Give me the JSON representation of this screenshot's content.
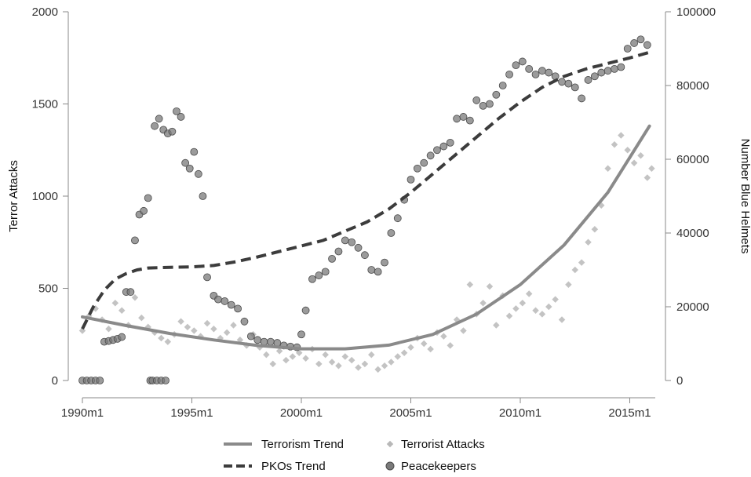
{
  "chart_data": {
    "type": "scatter",
    "title": "",
    "xlabel": "",
    "ylabel": "Terror Attacks",
    "y2label": "Number Blue Helmets",
    "x_range": [
      1990.0,
      2016.2
    ],
    "ylim": [
      0,
      2000
    ],
    "y2lim": [
      0,
      100000
    ],
    "x_ticks": [
      {
        "value": 1990,
        "label": "1990m1"
      },
      {
        "value": 1995,
        "label": "1995m1"
      },
      {
        "value": 2000,
        "label": "2000m1"
      },
      {
        "value": 2005,
        "label": "2005m1"
      },
      {
        "value": 2010,
        "label": "2010m1"
      },
      {
        "value": 2015,
        "label": "2015m1"
      }
    ],
    "y_ticks": [
      0,
      500,
      1000,
      1500,
      2000
    ],
    "y2_ticks": [
      0,
      20000,
      40000,
      60000,
      80000,
      100000
    ],
    "grid": false,
    "legend_position": "bottom",
    "legend": [
      {
        "key": "terror_trend",
        "label": "Terrorism Trend"
      },
      {
        "key": "attacks",
        "label": "Terrorist Attacks"
      },
      {
        "key": "pko_trend",
        "label": "PKOs Trend"
      },
      {
        "key": "peacekeepers",
        "label": "Peacekeepers"
      }
    ],
    "colors": {
      "terror_trend": "#8a8a8a",
      "pko_trend": "#3c3c3c",
      "attacks": "#b8b8b8",
      "peacekeepers": "#7a7a7a"
    },
    "series": [
      {
        "key": "terror_trend",
        "axis": "left",
        "kind": "line",
        "x": [
          1990.0,
          1992.0,
          1994.0,
          1996.0,
          1998.0,
          2000.0,
          2002.0,
          2004.0,
          2006.0,
          2008.0,
          2010.0,
          2012.0,
          2014.0,
          2015.9
        ],
        "y": [
          345,
          298,
          255,
          220,
          190,
          172,
          172,
          192,
          250,
          360,
          520,
          735,
          1020,
          1380
        ]
      },
      {
        "key": "pko_trend",
        "axis": "right",
        "kind": "line",
        "x": [
          1990.0,
          1990.5,
          1991.0,
          1991.5,
          1992.0,
          1992.5,
          1993.0,
          1994.0,
          1995.0,
          1996.0,
          1997.0,
          1998.0,
          1999.0,
          2000.0,
          2001.0,
          2002.0,
          2003.0,
          2004.0,
          2005.0,
          2006.0,
          2007.0,
          2008.0,
          2009.0,
          2010.0,
          2011.0,
          2012.0,
          2013.0,
          2014.0,
          2015.0,
          2015.9
        ],
        "y": [
          14000,
          20000,
          24500,
          27500,
          29000,
          30000,
          30500,
          30700,
          30800,
          31200,
          32200,
          33500,
          35000,
          36500,
          38000,
          40500,
          43000,
          46500,
          51000,
          56000,
          61000,
          66000,
          71000,
          75500,
          79500,
          82500,
          84500,
          86000,
          87500,
          89000
        ]
      },
      {
        "key": "peacekeepers",
        "axis": "right",
        "kind": "points",
        "x": [
          1990.0,
          1990.2,
          1990.4,
          1990.6,
          1990.8,
          1991.0,
          1991.2,
          1991.4,
          1991.6,
          1991.8,
          1992.0,
          1992.2,
          1992.4,
          1992.6,
          1992.8,
          1993.0,
          1993.1,
          1993.2,
          1993.4,
          1993.6,
          1993.8,
          1993.3,
          1993.5,
          1993.7,
          1993.9,
          1994.1,
          1994.3,
          1994.5,
          1994.7,
          1994.9,
          1995.1,
          1995.3,
          1995.5,
          1995.7,
          1996.0,
          1996.2,
          1996.5,
          1996.8,
          1997.1,
          1997.4,
          1997.7,
          1998.0,
          1998.3,
          1998.6,
          1998.9,
          1999.2,
          1999.5,
          1999.8,
          2000.0,
          2000.2,
          2000.5,
          2000.8,
          2001.1,
          2001.4,
          2001.7,
          2002.0,
          2002.3,
          2002.6,
          2002.9,
          2003.2,
          2003.5,
          2003.8,
          2004.1,
          2004.4,
          2004.7,
          2005.0,
          2005.3,
          2005.6,
          2005.9,
          2006.2,
          2006.5,
          2006.8,
          2007.1,
          2007.4,
          2007.7,
          2008.0,
          2008.3,
          2008.6,
          2008.9,
          2009.2,
          2009.5,
          2009.8,
          2010.1,
          2010.4,
          2010.7,
          2011.0,
          2011.3,
          2011.6,
          2011.9,
          2012.2,
          2012.5,
          2012.8,
          2013.1,
          2013.4,
          2013.7,
          2014.0,
          2014.3,
          2014.6,
          2014.9,
          2015.2,
          2015.5,
          2015.8
        ],
        "y": [
          0,
          0,
          0,
          0,
          0,
          10500,
          10700,
          11000,
          11300,
          11800,
          24000,
          24000,
          38000,
          45000,
          46000,
          49500,
          0,
          0,
          0,
          0,
          0,
          69000,
          71000,
          68000,
          67000,
          67500,
          73000,
          71500,
          59000,
          57500,
          62000,
          56000,
          50000,
          28000,
          23000,
          22000,
          21500,
          20500,
          19500,
          16000,
          12000,
          11000,
          10500,
          10500,
          10200,
          9500,
          9200,
          9000,
          12500,
          19000,
          27500,
          28500,
          29500,
          33000,
          35000,
          38000,
          37500,
          36000,
          34000,
          30000,
          29500,
          32000,
          40000,
          44000,
          49000,
          54500,
          57500,
          59000,
          61000,
          62500,
          63500,
          64500,
          71000,
          71500,
          70500,
          76000,
          74500,
          75000,
          77500,
          80000,
          83000,
          85500,
          86500,
          84500,
          83000,
          84000,
          83500,
          82500,
          81000,
          80500,
          79500,
          76500,
          81500,
          82500,
          83500,
          84000,
          84500,
          85000,
          90000,
          91500,
          92500,
          91000
        ]
      },
      {
        "key": "attacks",
        "axis": "left",
        "kind": "points",
        "x": [
          1990.0,
          1990.3,
          1990.6,
          1990.9,
          1991.2,
          1991.5,
          1991.8,
          1992.1,
          1992.4,
          1992.7,
          1993.0,
          1993.3,
          1993.6,
          1993.9,
          1994.2,
          1994.5,
          1994.8,
          1995.1,
          1995.4,
          1995.7,
          1996.0,
          1996.3,
          1996.6,
          1996.9,
          1997.2,
          1997.5,
          1997.8,
          1998.1,
          1998.4,
          1998.7,
          1999.0,
          1999.3,
          1999.6,
          1999.9,
          2000.2,
          2000.5,
          2000.8,
          2001.1,
          2001.4,
          2001.7,
          2002.0,
          2002.3,
          2002.6,
          2002.9,
          2003.2,
          2003.5,
          2003.8,
          2004.1,
          2004.4,
          2004.7,
          2005.0,
          2005.3,
          2005.6,
          2005.9,
          2006.2,
          2006.5,
          2006.8,
          2007.1,
          2007.4,
          2007.7,
          2008.0,
          2008.3,
          2008.6,
          2008.9,
          2009.2,
          2009.5,
          2009.8,
          2010.1,
          2010.4,
          2010.7,
          2011.0,
          2011.3,
          2011.6,
          2011.9,
          2012.2,
          2012.5,
          2012.8,
          2013.1,
          2013.4,
          2013.7,
          2014.0,
          2014.3,
          2014.6,
          2014.9,
          2015.2,
          2015.5,
          2015.8,
          2016.0
        ],
        "y": [
          270,
          350,
          390,
          330,
          280,
          420,
          380,
          300,
          450,
          340,
          290,
          260,
          230,
          210,
          250,
          320,
          290,
          270,
          240,
          310,
          280,
          230,
          260,
          300,
          220,
          190,
          250,
          180,
          140,
          90,
          160,
          110,
          130,
          150,
          120,
          170,
          90,
          140,
          100,
          80,
          130,
          110,
          70,
          90,
          140,
          60,
          80,
          100,
          130,
          150,
          180,
          230,
          200,
          170,
          260,
          240,
          190,
          330,
          270,
          520,
          360,
          420,
          510,
          300,
          460,
          350,
          390,
          420,
          470,
          380,
          360,
          400,
          440,
          330,
          520,
          600,
          640,
          750,
          820,
          950,
          1150,
          1280,
          1330,
          1250,
          1180,
          1220,
          1100,
          1150
        ]
      }
    ]
  }
}
